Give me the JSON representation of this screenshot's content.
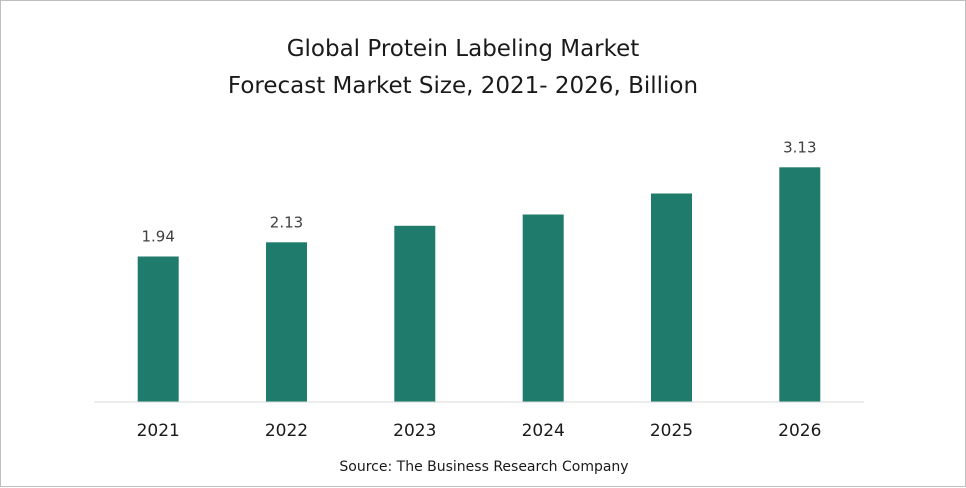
{
  "chart_data": {
    "type": "bar",
    "title_line1": "Global Protein Labeling Market",
    "title_line2": "Forecast Market Size, 2021- 2026, Billion",
    "categories": [
      "2021",
      "2022",
      "2023",
      "2024",
      "2025",
      "2026"
    ],
    "values": [
      1.94,
      2.13,
      2.35,
      2.5,
      2.78,
      3.13
    ],
    "data_labels": [
      "1.94",
      "2.13",
      "",
      "",
      "",
      "3.13"
    ],
    "xlabel": "",
    "ylabel": "",
    "ylim": [
      0,
      3.6
    ],
    "grid": false,
    "legend": "none",
    "bar_color": "#1f7b6c",
    "source": "Source: The Business Research Company"
  }
}
